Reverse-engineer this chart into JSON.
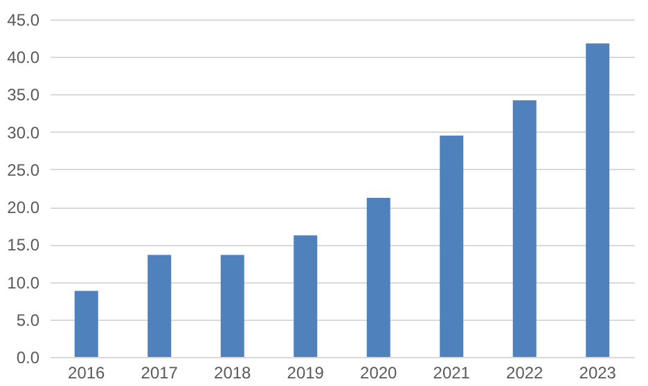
{
  "chart_data": {
    "type": "bar",
    "categories": [
      "2016",
      "2017",
      "2018",
      "2019",
      "2020",
      "2021",
      "2022",
      "2023"
    ],
    "values": [
      8.8,
      13.6,
      13.6,
      16.2,
      21.2,
      29.5,
      34.2,
      41.8
    ],
    "color": "#4f81bd",
    "ylim": [
      0,
      45
    ],
    "yticks": [
      {
        "value": 0,
        "label": "0.0"
      },
      {
        "value": 5,
        "label": "5.0"
      },
      {
        "value": 10,
        "label": "10.0"
      },
      {
        "value": 15,
        "label": "15.0"
      },
      {
        "value": 20,
        "label": "20.0"
      },
      {
        "value": 25,
        "label": "25.0"
      },
      {
        "value": 30,
        "label": "30.0"
      },
      {
        "value": 35,
        "label": "35.0"
      },
      {
        "value": 40,
        "label": "40.0"
      },
      {
        "value": 45,
        "label": "45.0"
      }
    ],
    "grid": "y"
  }
}
